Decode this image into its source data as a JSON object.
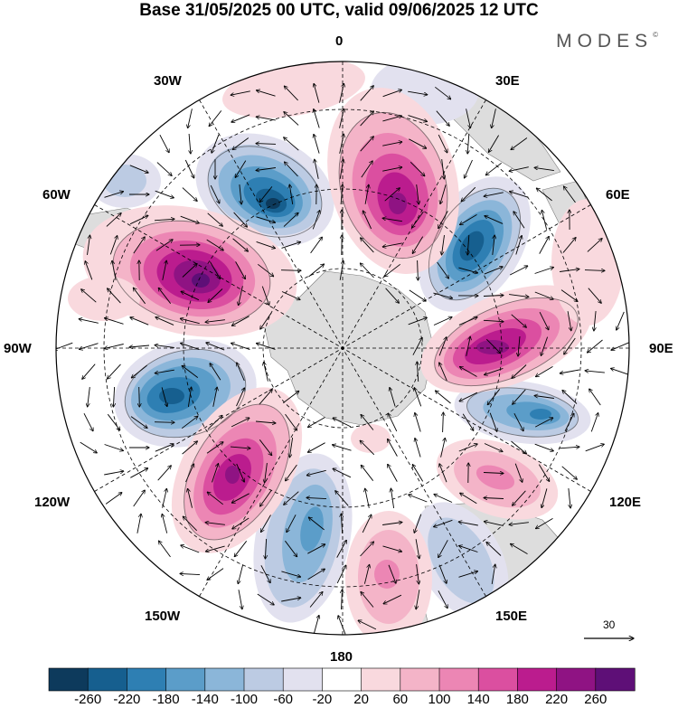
{
  "title": "Base 31/05/2025 00 UTC, valid 09/06/2025 12 UTC",
  "brand": "MODES",
  "brand_mark": "©",
  "longitude_labels": {
    "n": "0",
    "ne": "30E",
    "e1": "60E",
    "e": "90E",
    "se1": "120E",
    "se": "150E",
    "s": "180",
    "sw": "150W",
    "w1": "120W",
    "w": "90W",
    "nw1": "60W",
    "nw": "30W"
  },
  "reference_vector": "30",
  "colorbar": {
    "labels": [
      "-260",
      "-220",
      "-180",
      "-140",
      "-100",
      "-60",
      "-20",
      "20",
      "60",
      "100",
      "140",
      "180",
      "220",
      "260"
    ],
    "colors": [
      "#0d3a5c",
      "#165f8f",
      "#2e7fb3",
      "#5b9dc9",
      "#8bb6d9",
      "#bccbe3",
      "#e2e1ef",
      "#ffffff",
      "#f9d9de",
      "#f4b4c8",
      "#ec86b4",
      "#db4fa0",
      "#bb1c8e",
      "#8f1383",
      "#5e0f77"
    ]
  },
  "colors": {
    "land": "#d9d9d9",
    "grid": "#000000"
  }
}
